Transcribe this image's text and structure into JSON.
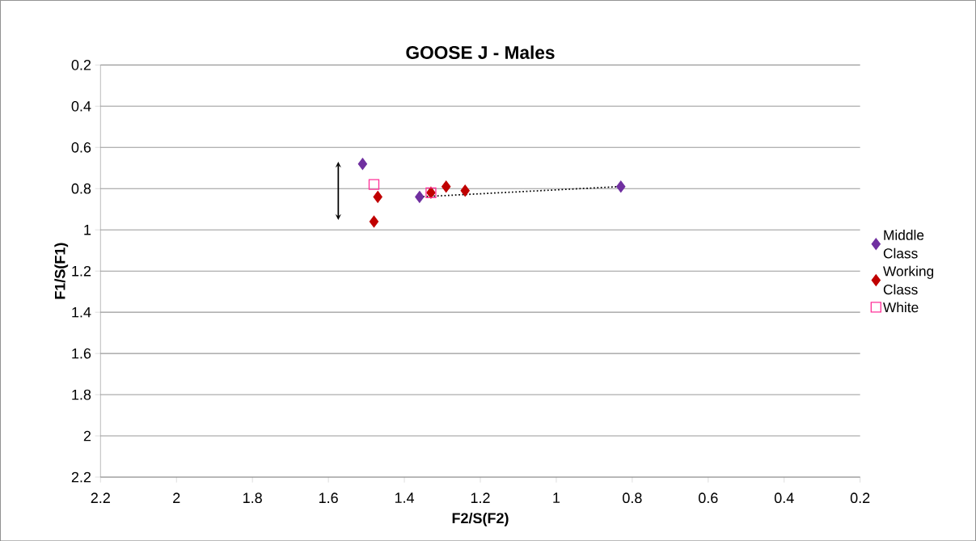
{
  "chart_data": {
    "type": "scatter",
    "title": "GOOSE J - Males",
    "xlabel": "F2/S(F2)",
    "ylabel": "F1/S(F1)",
    "xlim": [
      2.2,
      0.2
    ],
    "ylim": [
      2.2,
      0.2
    ],
    "xticks": [
      2.2,
      2,
      1.8,
      1.6,
      1.4,
      1.2,
      1,
      0.8,
      0.6,
      0.4,
      0.2
    ],
    "yticks": [
      0.2,
      0.4,
      0.6,
      0.8,
      1,
      1.2,
      1.4,
      1.6,
      1.8,
      2,
      2.2
    ],
    "grid": "y",
    "legend": "right",
    "marker": "diamond",
    "series": [
      {
        "type": "line",
        "color": "#000000",
        "marker": "none",
        "line_style": "dotted",
        "x": [
          1.36,
          0.83
        ],
        "values": [
          0.84,
          0.79
        ]
      },
      {
        "name": "Middle Class",
        "color": "#7030a0",
        "x": [
          1.51,
          1.36,
          0.83
        ],
        "values": [
          0.68,
          0.84,
          0.79
        ]
      },
      {
        "name": "Working Class",
        "color": "#c00000",
        "x": [
          1.48,
          1.47,
          1.33,
          1.29,
          1.24
        ],
        "values": [
          0.96,
          0.84,
          0.82,
          0.79,
          0.81
        ]
      },
      {
        "name": "White",
        "color": "#ff3399",
        "marker": "square",
        "x": [
          1.48,
          1.33
        ],
        "values": [
          0.78,
          0.82
        ]
      }
    ]
  }
}
